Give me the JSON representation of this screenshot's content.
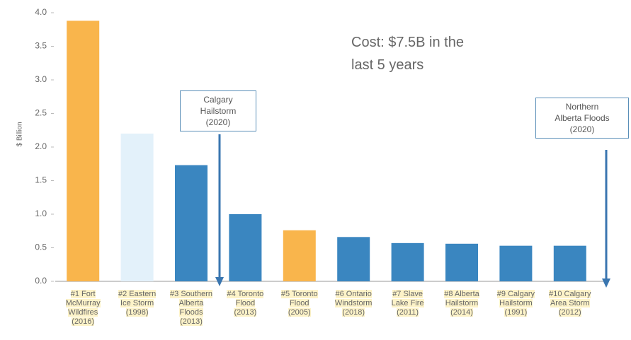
{
  "chart_data": {
    "type": "bar",
    "ylabel": "$ Billion",
    "categories": [
      "#1 Fort\nMcMurray\nWildfires\n(2016)",
      "#2 Eastern\nIce Storm\n(1998)",
      "#3 Southern\nAlberta\nFloods\n(2013)",
      "#4 Toronto\nFlood\n(2013)",
      "#5 Toronto\nFlood\n(2005)",
      "#6 Ontario\nWindstorm\n(2018)",
      "#7 Slave\nLake Fire\n(2011)",
      "#8 Alberta\nHailstorm\n(2014)",
      "#9 Calgary\nHailstorm\n(1991)",
      "#10 Calgary\nArea Storm\n(2012)"
    ],
    "values": [
      3.88,
      2.2,
      1.73,
      1.0,
      0.76,
      0.66,
      0.57,
      0.56,
      0.53,
      0.53
    ],
    "colors": [
      "#f9b54c",
      "#e3f1fa",
      "#3a86c0",
      "#3a86c0",
      "#f9b54c",
      "#3a86c0",
      "#3a86c0",
      "#3a86c0",
      "#3a86c0",
      "#3a86c0"
    ],
    "ylim": [
      0,
      4
    ],
    "yticks": [
      {
        "value": 0,
        "label": "0.0"
      },
      0.5,
      {
        "value": 1,
        "label": "1.0"
      },
      1.5,
      {
        "value": 2,
        "label": "2.0"
      },
      2.5,
      {
        "value": 3,
        "label": "3.0"
      },
      3.5,
      {
        "value": 4,
        "label": "4.0"
      }
    ],
    "annotations": [
      "Cost: $7.5B in the\nlast 5 years",
      "Calgary\nHailstorm\n(2020)",
      "Northern\nAlberta Floods\n(2020)"
    ]
  }
}
